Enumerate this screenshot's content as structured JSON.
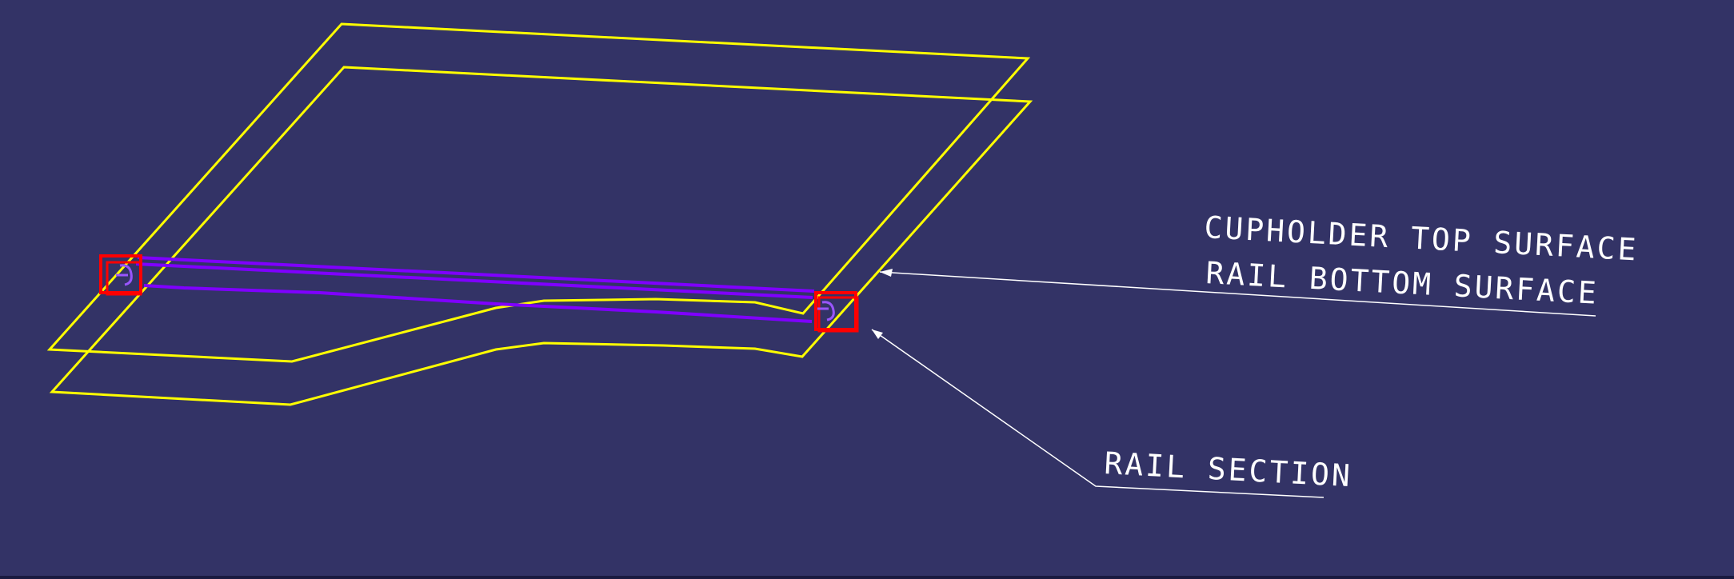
{
  "colors": {
    "background": "#333366",
    "surface_outline": "#ffff00",
    "rail": "#7f00ff",
    "rail_section_box": "#ff0000",
    "annotation": "#ffffff"
  },
  "annotations": {
    "top_surface": "CUPHOLDER TOP SURFACE",
    "rail_bottom": "RAIL BOTTOM SURFACE",
    "rail_section": "RAIL SECTION"
  }
}
